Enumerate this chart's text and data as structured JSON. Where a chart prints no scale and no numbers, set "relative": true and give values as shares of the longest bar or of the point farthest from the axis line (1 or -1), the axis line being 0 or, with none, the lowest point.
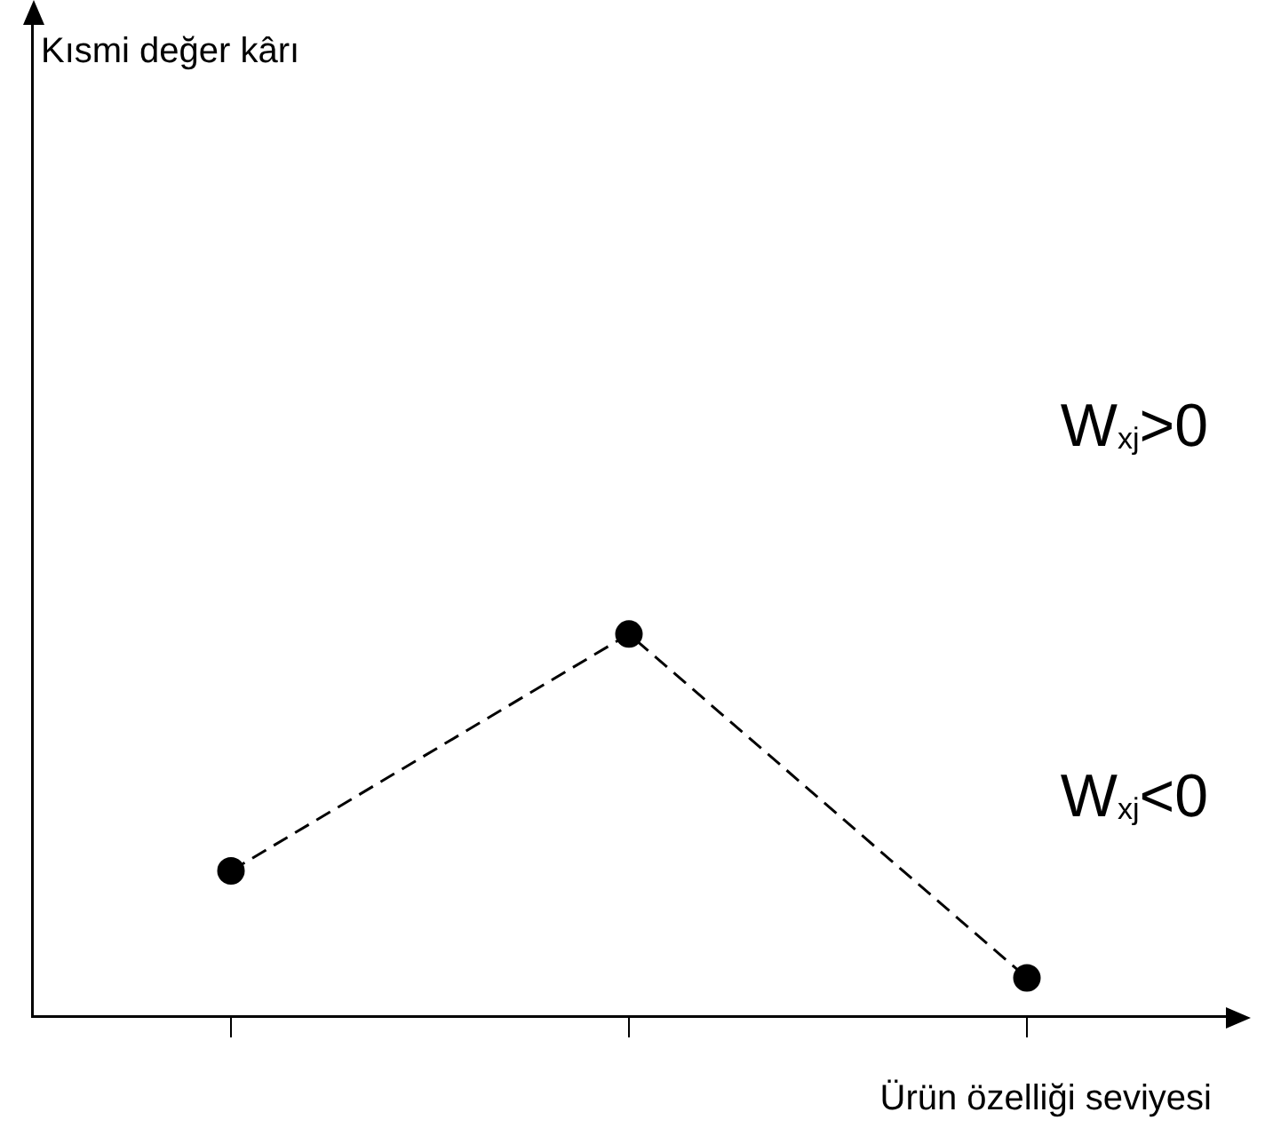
{
  "chart_data": {
    "type": "line",
    "relative": true,
    "xlabel": "Ürün özelliği seviyesi",
    "categories": [
      null,
      null,
      null
    ],
    "series": [
      {
        "color": "#000000",
        "values": [
          0.38,
          1,
          0.1
        ]
      }
    ],
    "marker": "circle",
    "line_style": "dashed",
    "grid": false,
    "legend": false,
    "annotations": [
      "Kısmi değer kârı",
      "W$_{xj}$>0",
      "W$_{xj}$<0"
    ]
  }
}
